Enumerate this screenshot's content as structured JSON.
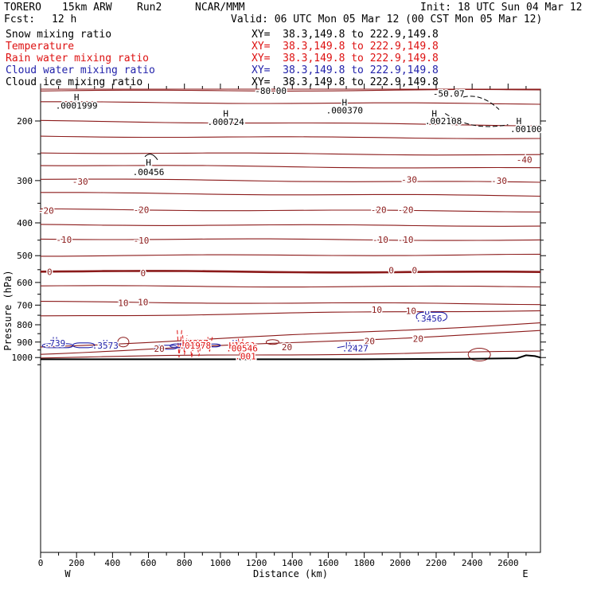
{
  "header": {
    "model": "TORERO",
    "resolution": "15km ARW",
    "run": "Run2",
    "org": "NCAR/MMM",
    "init": "Init: 18 UTC Sun 04 Mar 12",
    "fcst_label": "Fcst:",
    "fcst_value": "12 h",
    "valid": "Valid: 06 UTC Mon 05 Mar 12 (00 CST Mon 05 Mar 12)"
  },
  "legend": [
    {
      "name": "Snow mixing ratio",
      "xy": "XY=  38.3,149.8 to 222.9,149.8",
      "color": "#000000",
      "xy_color": "#000000"
    },
    {
      "name": "Temperature",
      "xy": "XY=  38.3,149.8 to 222.9,149.8",
      "color": "#cc1111",
      "xy_color": "#cc1111"
    },
    {
      "name": "Rain water mixing ratio",
      "xy": "XY=  38.3,149.8 to 222.9,149.8",
      "color": "#cc1111",
      "xy_color": "#cc1111"
    },
    {
      "name": "Cloud water mixing ratio",
      "xy": "XY=  38.3,149.8 to 222.9,149.8",
      "color": "#2222aa",
      "xy_color": "#2222aa"
    },
    {
      "name": "Cloud ice mixing ratio",
      "xy": "XY=  38.3,149.8 to 222.9,149.8",
      "color": "#000000",
      "xy_color": "#000000"
    }
  ],
  "chart_data": {
    "type": "contour",
    "xlabel": "Distance (km)",
    "ylabel": "Pressure (hPa)",
    "xlim": [
      0,
      2780
    ],
    "ylim": [
      1050,
      100
    ],
    "y_scale": "log",
    "x_ticks": [
      0,
      200,
      400,
      600,
      800,
      1000,
      1200,
      1400,
      1600,
      1800,
      2000,
      2200,
      2400,
      2600
    ],
    "y_ticks": [
      200,
      300,
      400,
      500,
      600,
      700,
      800,
      900,
      1000
    ],
    "x_end_labels": {
      "left": "W",
      "right": "E"
    },
    "colors": {
      "temperature": "#8b1a1a",
      "rain": "#dd1111",
      "cloud_water": "#2222aa",
      "snow": "#000000",
      "terrain": "#000000"
    },
    "temperature_contours": [
      {
        "value": -50,
        "p_start": 110,
        "p_end": 118
      },
      {
        "value": -45,
        "p_start": 132,
        "p_end": 134
      },
      {
        "value": -45,
        "p_start": 150,
        "p_end": 150
      },
      {
        "value": -45,
        "p_start": 163,
        "p_end": 162
      },
      {
        "value": -45,
        "p_start": 176,
        "p_end": 178
      },
      {
        "value": -40,
        "p_start": 200,
        "p_end": 206
      },
      {
        "value": -40,
        "p_start": 222,
        "p_end": 225
      },
      {
        "value": -35,
        "p_start": 248,
        "p_end": 252
      },
      {
        "value": -35,
        "p_start": 270,
        "p_end": 276
      },
      {
        "value": -30,
        "p_start": 297,
        "p_end": 304
      },
      {
        "value": -25,
        "p_start": 326,
        "p_end": 333
      },
      {
        "value": -20,
        "p_start": 365,
        "p_end": 370
      },
      {
        "value": -15,
        "p_start": 405,
        "p_end": 408
      },
      {
        "value": -10,
        "p_start": 446,
        "p_end": 450
      },
      {
        "value": -5,
        "p_start": 500,
        "p_end": 497
      },
      {
        "value": 0,
        "p_start": 556,
        "p_end": 560
      },
      {
        "value": 5,
        "p_start": 615,
        "p_end": 618
      },
      {
        "value": 10,
        "p_start": 685,
        "p_end": 695
      },
      {
        "value": 15,
        "p_start": 755,
        "p_end": 725
      },
      {
        "value": 20,
        "p_start": 930,
        "p_end": 790
      },
      {
        "value": 25,
        "p_start": 975,
        "p_end": 835
      },
      {
        "value": 30,
        "p_start": 1000,
        "p_end": 960
      }
    ],
    "contour_labels": [
      {
        "text": "-30",
        "x": 220,
        "p": 302,
        "kind": "temp"
      },
      {
        "text": "-30",
        "x": 2050,
        "p": 298,
        "kind": "temp"
      },
      {
        "text": "-30",
        "x": 2550,
        "p": 300,
        "kind": "temp"
      },
      {
        "text": "-40",
        "x": 2690,
        "p": 260,
        "kind": "temp"
      },
      {
        "text": "-20",
        "x": 30,
        "p": 368,
        "kind": "temp"
      },
      {
        "text": "-20",
        "x": 560,
        "p": 366,
        "kind": "temp"
      },
      {
        "text": "-20",
        "x": 1880,
        "p": 366,
        "kind": "temp"
      },
      {
        "text": "-20",
        "x": 2030,
        "p": 366,
        "kind": "temp"
      },
      {
        "text": "-10",
        "x": 130,
        "p": 448,
        "kind": "temp"
      },
      {
        "text": "-10",
        "x": 560,
        "p": 450,
        "kind": "temp"
      },
      {
        "text": "-10",
        "x": 1890,
        "p": 448,
        "kind": "temp"
      },
      {
        "text": "-10",
        "x": 2030,
        "p": 448,
        "kind": "temp"
      },
      {
        "text": "0",
        "x": 50,
        "p": 558,
        "kind": "temp"
      },
      {
        "text": "0",
        "x": 570,
        "p": 562,
        "kind": "temp"
      },
      {
        "text": "0",
        "x": 1950,
        "p": 552,
        "kind": "temp"
      },
      {
        "text": "0",
        "x": 2080,
        "p": 552,
        "kind": "temp"
      },
      {
        "text": "10",
        "x": 460,
        "p": 690,
        "kind": "temp"
      },
      {
        "text": "10",
        "x": 570,
        "p": 685,
        "kind": "temp"
      },
      {
        "text": "10",
        "x": 1870,
        "p": 722,
        "kind": "temp"
      },
      {
        "text": "10",
        "x": 2060,
        "p": 728,
        "kind": "temp"
      },
      {
        "text": "20",
        "x": 660,
        "p": 940,
        "kind": "temp"
      },
      {
        "text": "20",
        "x": 1370,
        "p": 930,
        "kind": "temp"
      },
      {
        "text": "20",
        "x": 1830,
        "p": 895,
        "kind": "temp"
      },
      {
        "text": "20",
        "x": 2100,
        "p": 880,
        "kind": "temp"
      },
      {
        "text": "H",
        "x": 200,
        "p": 170,
        "kind": "black"
      },
      {
        "text": ".0001999",
        "x": 200,
        "p": 180,
        "kind": "black"
      },
      {
        "text": "-80.00",
        "x": 1280,
        "p": 163,
        "kind": "black"
      },
      {
        "text": "H",
        "x": 1030,
        "p": 190,
        "kind": "black"
      },
      {
        "text": ".000724",
        "x": 1030,
        "p": 201,
        "kind": "black"
      },
      {
        "text": "H",
        "x": 1690,
        "p": 176,
        "kind": "black"
      },
      {
        "text": ".000370",
        "x": 1690,
        "p": 186,
        "kind": "black"
      },
      {
        "text": "H",
        "x": 2190,
        "p": 190,
        "kind": "black"
      },
      {
        "text": ".002108",
        "x": 2240,
        "p": 200,
        "kind": "black"
      },
      {
        "text": "H",
        "x": 2660,
        "p": 200,
        "kind": "black"
      },
      {
        "text": ".00100",
        "x": 2700,
        "p": 211,
        "kind": "black"
      },
      {
        "text": "-50.07",
        "x": 2270,
        "p": 166,
        "kind": "black"
      },
      {
        "text": "H",
        "x": 600,
        "p": 265,
        "kind": "black"
      },
      {
        "text": ".00456",
        "x": 600,
        "p": 283,
        "kind": "black"
      },
      {
        "text": "H",
        "x": 80,
        "p": 890,
        "kind": "blue"
      },
      {
        "text": ".739",
        "x": 80,
        "p": 905,
        "kind": "blue"
      },
      {
        "text": "H",
        "x": 360,
        "p": 905,
        "kind": "blue"
      },
      {
        "text": ".3573",
        "x": 360,
        "p": 920,
        "kind": "blue"
      },
      {
        "text": "H4897",
        "x": 860,
        "p": 905,
        "kind": "red"
      },
      {
        "text": ".01978",
        "x": 860,
        "p": 920,
        "kind": "red"
      },
      {
        "text": "H",
        "x": 1080,
        "p": 905,
        "kind": "blue"
      },
      {
        "text": "H1862",
        "x": 1120,
        "p": 920,
        "kind": "red"
      },
      {
        "text": ".00546",
        "x": 1120,
        "p": 938,
        "kind": "red"
      },
      {
        "text": ".001",
        "x": 1140,
        "p": 990,
        "kind": "red"
      },
      {
        "text": "H",
        "x": 1710,
        "p": 920,
        "kind": "blue"
      },
      {
        "text": ".2427",
        "x": 1750,
        "p": 938,
        "kind": "blue"
      },
      {
        "text": "H",
        "x": 2150,
        "p": 746,
        "kind": "blue"
      },
      {
        "text": ".3456",
        "x": 2160,
        "p": 766,
        "kind": "blue"
      }
    ]
  }
}
